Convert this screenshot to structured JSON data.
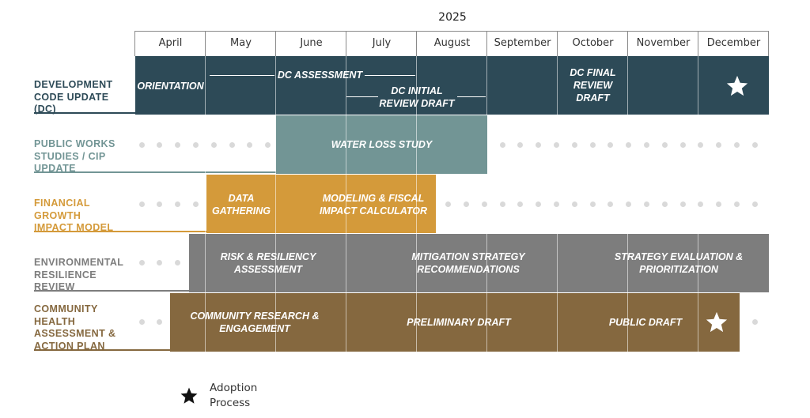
{
  "timeline": {
    "year": "2025",
    "months": [
      "April",
      "May",
      "June",
      "July",
      "August",
      "September",
      "October",
      "November",
      "December"
    ]
  },
  "colors": {
    "dc": "#2d4a57",
    "public_works": "#729595",
    "financial": "#d49a3a",
    "environmental": "#7d7d7d",
    "community": "#85683f",
    "dot": "#d9d9d9"
  },
  "rows": {
    "dc": {
      "label_lines": [
        "DEVELOPMENT",
        "CODE UPDATE",
        "(DC)"
      ],
      "tasks": {
        "orientation": "ORIENTATION",
        "assessment": "DC ASSESSMENT",
        "initial_draft_lines": [
          "DC INITIAL",
          "REVIEW DRAFT"
        ],
        "final_draft_lines": [
          "DC FINAL",
          "REVIEW",
          "DRAFT"
        ]
      }
    },
    "public_works": {
      "label_lines": [
        "PUBLIC WORKS",
        "STUDIES / CIP",
        "UPDATE"
      ],
      "tasks": {
        "water_loss": "WATER LOSS STUDY"
      }
    },
    "financial": {
      "label_lines": [
        "FINANCIAL",
        "GROWTH",
        "IMPACT MODEL"
      ],
      "tasks": {
        "data_lines": [
          "DATA",
          "GATHERING"
        ],
        "modeling_lines": [
          "MODELING & FISCAL",
          "IMPACT CALCULATOR"
        ]
      }
    },
    "environmental": {
      "label_lines": [
        "ENVIRONMENTAL",
        "RESILIENCE",
        "REVIEW"
      ],
      "tasks": {
        "risk_lines": [
          "RISK & RESILIENCY",
          "ASSESSMENT"
        ],
        "mitigation_lines": [
          "MITIGATION STRATEGY",
          "RECOMMENDATIONS"
        ],
        "evaluation_lines": [
          "STRATEGY EVALUATION &",
          "PRIORITIZATION"
        ]
      }
    },
    "community": {
      "label_lines": [
        "COMMUNITY",
        "HEALTH",
        "ASSESSMENT &",
        "ACTION PLAN"
      ],
      "tasks": {
        "research_lines": [
          "COMMUNITY RESEARCH &",
          "ENGAGEMENT"
        ],
        "preliminary": "PRELIMINARY DRAFT",
        "public": "PUBLIC DRAFT"
      }
    }
  },
  "legend": {
    "icon": "star-icon",
    "text_lines": [
      "Adoption",
      "Process"
    ]
  }
}
